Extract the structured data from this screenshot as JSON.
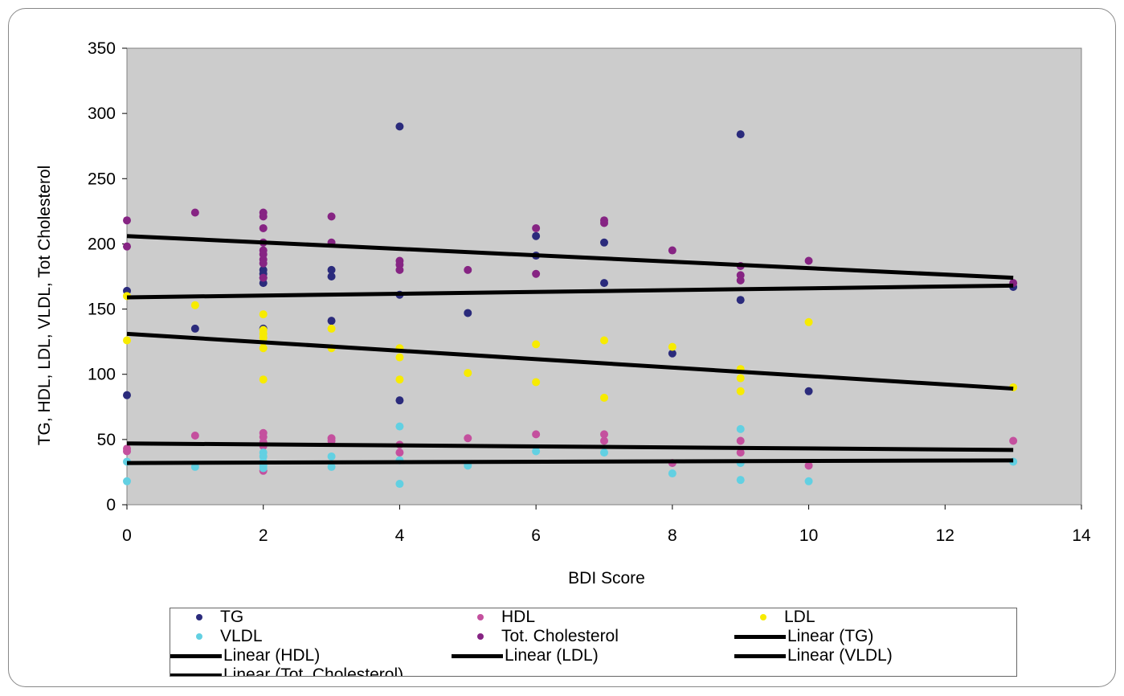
{
  "chart_data": {
    "type": "scatter",
    "title": "",
    "xlabel": "BDI Score",
    "ylabel": "TG, HDL, LDL, VLDL, Tot Cholesterol",
    "xlim": [
      0,
      14
    ],
    "ylim": [
      0,
      350
    ],
    "xticks": [
      "0",
      "2",
      "4",
      "6",
      "8",
      "10",
      "12",
      "14"
    ],
    "yticks": [
      "0",
      "50",
      "100",
      "150",
      "200",
      "250",
      "300",
      "350"
    ],
    "grid": false,
    "plot_background": "#cccccc",
    "legend_position": "bottom",
    "series": [
      {
        "name": "TG",
        "color": "#2b2b7c",
        "points": [
          [
            0,
            164
          ],
          [
            0,
            84
          ],
          [
            1,
            135
          ],
          [
            2,
            180
          ],
          [
            2,
            177
          ],
          [
            2,
            174
          ],
          [
            2,
            170
          ],
          [
            2,
            135
          ],
          [
            3,
            180
          ],
          [
            3,
            175
          ],
          [
            3,
            141
          ],
          [
            4,
            290
          ],
          [
            4,
            161
          ],
          [
            4,
            80
          ],
          [
            5,
            147
          ],
          [
            6,
            206
          ],
          [
            6,
            191
          ],
          [
            7,
            201
          ],
          [
            7,
            170
          ],
          [
            8,
            116
          ],
          [
            9,
            284
          ],
          [
            9,
            157
          ],
          [
            10,
            87
          ],
          [
            13,
            167
          ]
        ]
      },
      {
        "name": "HDL",
        "color": "#c4509e",
        "points": [
          [
            0,
            43
          ],
          [
            0,
            41
          ],
          [
            1,
            53
          ],
          [
            2,
            55
          ],
          [
            2,
            52
          ],
          [
            2,
            48
          ],
          [
            2,
            45
          ],
          [
            2,
            26
          ],
          [
            3,
            51
          ],
          [
            3,
            49
          ],
          [
            4,
            46
          ],
          [
            4,
            40
          ],
          [
            5,
            51
          ],
          [
            6,
            54
          ],
          [
            7,
            54
          ],
          [
            7,
            49
          ],
          [
            8,
            32
          ],
          [
            9,
            49
          ],
          [
            9,
            40
          ],
          [
            10,
            30
          ],
          [
            13,
            49
          ]
        ]
      },
      {
        "name": "LDL",
        "color": "#f7eb00",
        "points": [
          [
            0,
            160
          ],
          [
            0,
            126
          ],
          [
            1,
            153
          ],
          [
            2,
            146
          ],
          [
            2,
            134
          ],
          [
            2,
            131
          ],
          [
            2,
            128
          ],
          [
            2,
            125
          ],
          [
            2,
            120
          ],
          [
            2,
            96
          ],
          [
            3,
            135
          ],
          [
            3,
            120
          ],
          [
            4,
            120
          ],
          [
            4,
            113
          ],
          [
            4,
            96
          ],
          [
            5,
            101
          ],
          [
            6,
            123
          ],
          [
            6,
            94
          ],
          [
            7,
            126
          ],
          [
            7,
            82
          ],
          [
            8,
            121
          ],
          [
            9,
            104
          ],
          [
            9,
            97
          ],
          [
            9,
            87
          ],
          [
            10,
            140
          ],
          [
            13,
            90
          ]
        ]
      },
      {
        "name": "VLDL",
        "color": "#62d0e2",
        "points": [
          [
            0,
            33
          ],
          [
            0,
            18
          ],
          [
            1,
            29
          ],
          [
            2,
            40
          ],
          [
            2,
            37
          ],
          [
            2,
            33
          ],
          [
            2,
            30
          ],
          [
            2,
            28
          ],
          [
            3,
            37
          ],
          [
            3,
            29
          ],
          [
            4,
            60
          ],
          [
            4,
            34
          ],
          [
            4,
            16
          ],
          [
            5,
            30
          ],
          [
            6,
            41
          ],
          [
            7,
            40
          ],
          [
            8,
            24
          ],
          [
            9,
            58
          ],
          [
            9,
            32
          ],
          [
            9,
            19
          ],
          [
            10,
            18
          ],
          [
            13,
            33
          ]
        ]
      },
      {
        "name": "Tot. Cholesterol",
        "color": "#862483",
        "points": [
          [
            0,
            218
          ],
          [
            0,
            198
          ],
          [
            1,
            224
          ],
          [
            2,
            224
          ],
          [
            2,
            221
          ],
          [
            2,
            212
          ],
          [
            2,
            201
          ],
          [
            2,
            195
          ],
          [
            2,
            192
          ],
          [
            2,
            188
          ],
          [
            2,
            185
          ],
          [
            2,
            174
          ],
          [
            3,
            221
          ],
          [
            3,
            201
          ],
          [
            4,
            187
          ],
          [
            4,
            184
          ],
          [
            4,
            180
          ],
          [
            5,
            180
          ],
          [
            6,
            212
          ],
          [
            6,
            177
          ],
          [
            7,
            218
          ],
          [
            7,
            216
          ],
          [
            8,
            195
          ],
          [
            9,
            183
          ],
          [
            9,
            176
          ],
          [
            9,
            172
          ],
          [
            10,
            187
          ],
          [
            13,
            170
          ]
        ]
      }
    ],
    "trendlines": [
      {
        "name": "Linear (TG)",
        "from": [
          0,
          159
        ],
        "to": [
          13,
          168
        ]
      },
      {
        "name": "Linear (HDL)",
        "from": [
          0,
          47
        ],
        "to": [
          13,
          42
        ]
      },
      {
        "name": "Linear (LDL)",
        "from": [
          0,
          131
        ],
        "to": [
          13,
          89
        ]
      },
      {
        "name": "Linear (VLDL)",
        "from": [
          0,
          32
        ],
        "to": [
          13,
          34
        ]
      },
      {
        "name": "Linear (Tot. Cholesterol)",
        "from": [
          0,
          206
        ],
        "to": [
          13,
          174
        ]
      }
    ],
    "legend": [
      "TG",
      "HDL",
      "LDL",
      "VLDL",
      "Tot. Cholesterol",
      "Linear (TG)",
      "Linear (HDL)",
      "Linear (LDL)",
      "Linear (VLDL)",
      "Linear (Tot. Cholesterol)"
    ]
  }
}
